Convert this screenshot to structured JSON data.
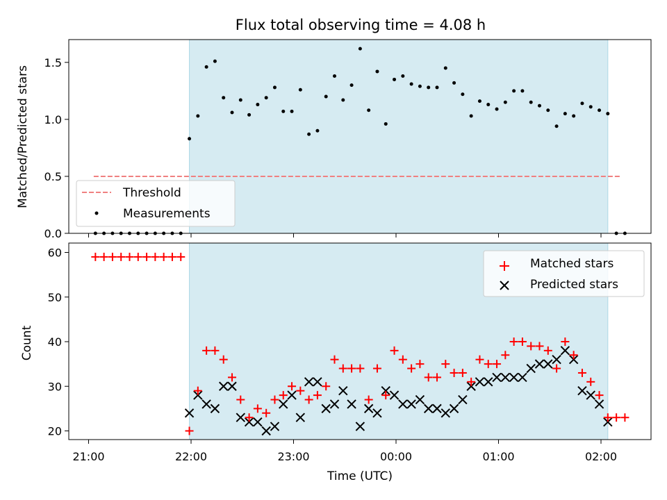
{
  "chart_data": [
    {
      "type": "scatter",
      "title": "Flux total observing time = 4.08 h",
      "xlabel": "",
      "ylabel": "Matched/Predicted stars",
      "ylim": [
        0,
        1.7
      ],
      "yticks": [
        0.0,
        0.5,
        1.0,
        1.5
      ],
      "ytick_labels": [
        "0.0",
        "0.5",
        "1.0",
        "1.5"
      ],
      "xlim": [
        "20:52",
        "02:30"
      ],
      "xticks": [
        "21:00",
        "22:00",
        "23:00",
        "00:00",
        "01:00",
        "02:00"
      ],
      "observing_window": [
        "21:59",
        "02:04"
      ],
      "threshold": {
        "label": "Threshold",
        "value": 0.5,
        "x": [
          "21:03",
          "02:12"
        ],
        "color": "#f08080"
      },
      "legend": {
        "position": "lower-left",
        "entries": [
          "Threshold",
          "Measurements"
        ]
      },
      "series": [
        {
          "name": "Measurements",
          "color": "#000000",
          "marker": "dot",
          "points": [
            [
              "21:04",
              0
            ],
            [
              "21:09",
              0
            ],
            [
              "21:14",
              0
            ],
            [
              "21:19",
              0
            ],
            [
              "21:24",
              0
            ],
            [
              "21:29",
              0
            ],
            [
              "21:34",
              0
            ],
            [
              "21:39",
              0
            ],
            [
              "21:44",
              0
            ],
            [
              "21:49",
              0
            ],
            [
              "21:54",
              0
            ],
            [
              "21:59",
              0.83
            ],
            [
              "22:04",
              1.03
            ],
            [
              "22:09",
              1.46
            ],
            [
              "22:14",
              1.51
            ],
            [
              "22:19",
              1.19
            ],
            [
              "22:24",
              1.06
            ],
            [
              "22:29",
              1.17
            ],
            [
              "22:34",
              1.04
            ],
            [
              "22:39",
              1.13
            ],
            [
              "22:44",
              1.19
            ],
            [
              "22:49",
              1.28
            ],
            [
              "22:54",
              1.07
            ],
            [
              "22:59",
              1.07
            ],
            [
              "23:04",
              1.26
            ],
            [
              "23:09",
              0.87
            ],
            [
              "23:14",
              0.9
            ],
            [
              "23:19",
              1.2
            ],
            [
              "23:24",
              1.38
            ],
            [
              "23:29",
              1.17
            ],
            [
              "23:34",
              1.3
            ],
            [
              "23:39",
              1.62
            ],
            [
              "23:44",
              1.08
            ],
            [
              "23:49",
              1.42
            ],
            [
              "23:54",
              0.96
            ],
            [
              "23:59",
              1.35
            ],
            [
              "00:04",
              1.38
            ],
            [
              "00:09",
              1.31
            ],
            [
              "00:14",
              1.29
            ],
            [
              "00:19",
              1.28
            ],
            [
              "00:24",
              1.28
            ],
            [
              "00:29",
              1.45
            ],
            [
              "00:34",
              1.32
            ],
            [
              "00:39",
              1.22
            ],
            [
              "00:44",
              1.03
            ],
            [
              "00:49",
              1.16
            ],
            [
              "00:54",
              1.13
            ],
            [
              "00:59",
              1.09
            ],
            [
              "01:04",
              1.15
            ],
            [
              "01:09",
              1.25
            ],
            [
              "01:14",
              1.25
            ],
            [
              "01:19",
              1.15
            ],
            [
              "01:24",
              1.12
            ],
            [
              "01:29",
              1.08
            ],
            [
              "01:34",
              0.94
            ],
            [
              "01:39",
              1.05
            ],
            [
              "01:44",
              1.03
            ],
            [
              "01:49",
              1.14
            ],
            [
              "01:54",
              1.11
            ],
            [
              "01:59",
              1.08
            ],
            [
              "02:04",
              1.05
            ],
            [
              "02:09",
              0
            ],
            [
              "02:14",
              0
            ]
          ]
        }
      ]
    },
    {
      "type": "scatter",
      "title": "",
      "xlabel": "Time (UTC)",
      "ylabel": "Count",
      "ylim": [
        18.2,
        61.1
      ],
      "yticks": [
        20,
        30,
        40,
        50,
        60
      ],
      "ytick_labels": [
        "20",
        "30",
        "40",
        "50",
        "60"
      ],
      "xlim": [
        "20:52",
        "02:30"
      ],
      "xticks": [
        "21:00",
        "22:00",
        "23:00",
        "00:00",
        "01:00",
        "02:00"
      ],
      "xtick_labels": [
        "21:00",
        "22:00",
        "23:00",
        "00:00",
        "01:00",
        "02:00"
      ],
      "observing_window": [
        "21:59",
        "02:04"
      ],
      "legend": {
        "position": "upper-right",
        "entries": [
          "Matched stars",
          "Predicted stars"
        ]
      },
      "series": [
        {
          "name": "Matched stars",
          "color": "#ff0000",
          "marker": "plus",
          "points": [
            [
              "21:04",
              59
            ],
            [
              "21:09",
              59
            ],
            [
              "21:14",
              59
            ],
            [
              "21:19",
              59
            ],
            [
              "21:24",
              59
            ],
            [
              "21:29",
              59
            ],
            [
              "21:34",
              59
            ],
            [
              "21:39",
              59
            ],
            [
              "21:44",
              59
            ],
            [
              "21:49",
              59
            ],
            [
              "21:54",
              59
            ],
            [
              "21:59",
              20
            ],
            [
              "22:04",
              29
            ],
            [
              "22:09",
              38
            ],
            [
              "22:14",
              38
            ],
            [
              "22:19",
              36
            ],
            [
              "22:24",
              32
            ],
            [
              "22:29",
              27
            ],
            [
              "22:34",
              23
            ],
            [
              "22:39",
              25
            ],
            [
              "22:44",
              24
            ],
            [
              "22:49",
              27
            ],
            [
              "22:54",
              28
            ],
            [
              "22:59",
              30
            ],
            [
              "23:04",
              29
            ],
            [
              "23:09",
              27
            ],
            [
              "23:14",
              28
            ],
            [
              "23:19",
              30
            ],
            [
              "23:24",
              36
            ],
            [
              "23:29",
              34
            ],
            [
              "23:34",
              34
            ],
            [
              "23:39",
              34
            ],
            [
              "23:44",
              27
            ],
            [
              "23:49",
              34
            ],
            [
              "23:54",
              28
            ],
            [
              "23:59",
              38
            ],
            [
              "00:04",
              36
            ],
            [
              "00:09",
              34
            ],
            [
              "00:14",
              35
            ],
            [
              "00:19",
              32
            ],
            [
              "00:24",
              32
            ],
            [
              "00:29",
              35
            ],
            [
              "00:34",
              33
            ],
            [
              "00:39",
              33
            ],
            [
              "00:44",
              31
            ],
            [
              "00:49",
              36
            ],
            [
              "00:54",
              35
            ],
            [
              "00:59",
              35
            ],
            [
              "01:04",
              37
            ],
            [
              "01:09",
              40
            ],
            [
              "01:14",
              40
            ],
            [
              "01:19",
              39
            ],
            [
              "01:24",
              39
            ],
            [
              "01:29",
              38
            ],
            [
              "01:34",
              34
            ],
            [
              "01:39",
              40
            ],
            [
              "01:44",
              37
            ],
            [
              "01:49",
              33
            ],
            [
              "01:54",
              31
            ],
            [
              "01:59",
              28
            ],
            [
              "02:04",
              23
            ],
            [
              "02:09",
              23
            ],
            [
              "02:14",
              23
            ]
          ]
        },
        {
          "name": "Predicted stars",
          "color": "#000000",
          "marker": "x",
          "points": [
            [
              "21:59",
              24
            ],
            [
              "22:04",
              28
            ],
            [
              "22:09",
              26
            ],
            [
              "22:14",
              25
            ],
            [
              "22:19",
              30
            ],
            [
              "22:24",
              30
            ],
            [
              "22:29",
              23
            ],
            [
              "22:34",
              22
            ],
            [
              "22:39",
              22
            ],
            [
              "22:44",
              20
            ],
            [
              "22:49",
              21
            ],
            [
              "22:54",
              26
            ],
            [
              "22:59",
              28
            ],
            [
              "23:04",
              23
            ],
            [
              "23:09",
              31
            ],
            [
              "23:14",
              31
            ],
            [
              "23:19",
              25
            ],
            [
              "23:24",
              26
            ],
            [
              "23:29",
              29
            ],
            [
              "23:34",
              26
            ],
            [
              "23:39",
              21
            ],
            [
              "23:44",
              25
            ],
            [
              "23:49",
              24
            ],
            [
              "23:54",
              29
            ],
            [
              "23:59",
              28
            ],
            [
              "00:04",
              26
            ],
            [
              "00:09",
              26
            ],
            [
              "00:14",
              27
            ],
            [
              "00:19",
              25
            ],
            [
              "00:24",
              25
            ],
            [
              "00:29",
              24
            ],
            [
              "00:34",
              25
            ],
            [
              "00:39",
              27
            ],
            [
              "00:44",
              30
            ],
            [
              "00:49",
              31
            ],
            [
              "00:54",
              31
            ],
            [
              "00:59",
              32
            ],
            [
              "01:04",
              32
            ],
            [
              "01:09",
              32
            ],
            [
              "01:14",
              32
            ],
            [
              "01:19",
              34
            ],
            [
              "01:24",
              35
            ],
            [
              "01:29",
              35
            ],
            [
              "01:34",
              36
            ],
            [
              "01:39",
              38
            ],
            [
              "01:44",
              36
            ],
            [
              "01:49",
              29
            ],
            [
              "01:54",
              28
            ],
            [
              "01:59",
              26
            ],
            [
              "02:04",
              22
            ]
          ]
        }
      ]
    }
  ]
}
